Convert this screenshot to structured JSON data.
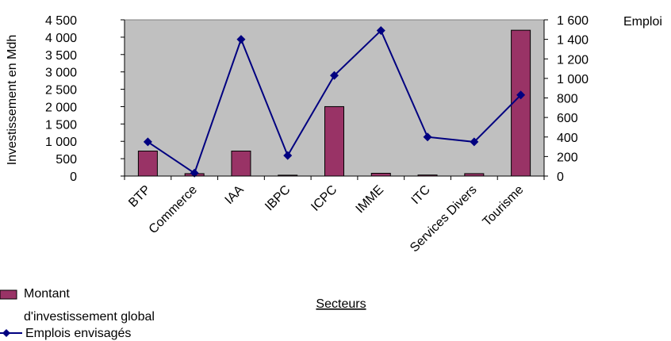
{
  "chart_data": {
    "type": "bar",
    "xlabel": "Secteurs",
    "ylabel": "Investissement en Mdh",
    "y2label": "Emploi",
    "categories": [
      "BTP",
      "Commerce",
      "IAA",
      "IBPC",
      "ICPC",
      "IMME",
      "ITC",
      "Services Divers",
      "Tourisme"
    ],
    "series": [
      {
        "name": "Montant d'investissement global",
        "type": "bar",
        "axis": "left",
        "color": "#993366",
        "values": [
          720,
          70,
          720,
          25,
          2000,
          80,
          30,
          70,
          4200
        ]
      },
      {
        "name": "Emplois envisagés",
        "type": "line",
        "axis": "right",
        "color": "#000080",
        "marker": "diamond",
        "values": [
          350,
          30,
          1400,
          210,
          1030,
          1490,
          400,
          350,
          830
        ]
      }
    ],
    "ylim": [
      0,
      4500
    ],
    "yticks": [
      "0",
      "500",
      "1 000",
      "1 500",
      "2 000",
      "2 500",
      "3 000",
      "3 500",
      "4 000",
      "4 500"
    ],
    "y2lim": [
      0,
      1600
    ],
    "y2ticks": [
      "0",
      "200",
      "400",
      "600",
      "800",
      "1 000",
      "1 200",
      "1 400",
      "1 600"
    ],
    "plot_background": "#c0c0c0",
    "grid": false,
    "legend_position": "bottom-left"
  }
}
